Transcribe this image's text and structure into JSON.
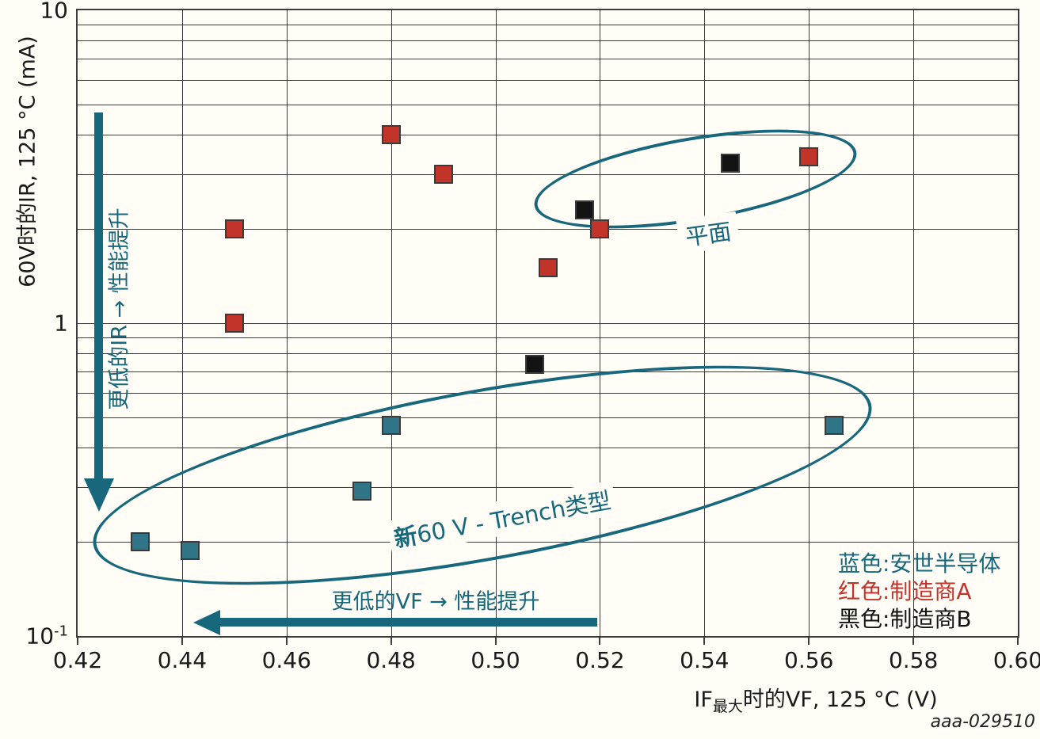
{
  "watermark": "aaa-029510",
  "legend": {
    "items": [
      {
        "label": "蓝色:安世半导体",
        "color": "#17687c"
      },
      {
        "label": "红色:制造商A",
        "color": "#c23329"
      },
      {
        "label": "黑色:制造商B",
        "color": "#131313"
      }
    ]
  },
  "chart_data": {
    "type": "scatter",
    "grid": true,
    "x_axis": {
      "title_main": "IF",
      "title_sub": "最大",
      "title_rest": "时的VF, 125 °C (V)",
      "min": 0.42,
      "max": 0.6,
      "ticks": [
        {
          "label": "0.42",
          "value": 0.42
        },
        {
          "label": "0.44",
          "value": 0.44
        },
        {
          "label": "0.46",
          "value": 0.46
        },
        {
          "label": "0.48",
          "value": 0.48
        },
        {
          "label": "0.50",
          "value": 0.5
        },
        {
          "label": "0.52",
          "value": 0.52
        },
        {
          "label": "0.54",
          "value": 0.54
        },
        {
          "label": "0.56",
          "value": 0.56
        },
        {
          "label": "0.58",
          "value": 0.58
        },
        {
          "label": "0.60",
          "value": 0.6
        }
      ]
    },
    "y_axis": {
      "title": "60V时的IR, 125 °C (mA)",
      "scale": "log",
      "min": 0.1,
      "max": 10,
      "ticks": [
        {
          "base": "10",
          "exp": "",
          "value": 10
        },
        {
          "base": "1",
          "exp": "",
          "value": 1
        },
        {
          "base": "10",
          "exp": "-1",
          "value": 0.1
        }
      ]
    },
    "series": [
      {
        "name": "安世半导体",
        "color": "#2f7487",
        "points": [
          [
            0.432,
            0.2
          ],
          [
            0.4415,
            0.188
          ],
          [
            0.4745,
            0.29
          ],
          [
            0.48,
            0.472
          ],
          [
            0.5648,
            0.472
          ]
        ]
      },
      {
        "name": "制造商A",
        "color": "#c23329",
        "points": [
          [
            0.45,
            1.0
          ],
          [
            0.45,
            2.0
          ],
          [
            0.48,
            4.0
          ],
          [
            0.49,
            3.0
          ],
          [
            0.51,
            1.5
          ],
          [
            0.52,
            2.0
          ],
          [
            0.56,
            3.4
          ]
        ]
      },
      {
        "name": "制造商B",
        "color": "#131313",
        "points": [
          [
            0.5075,
            0.74
          ],
          [
            0.517,
            2.3
          ],
          [
            0.545,
            3.25
          ]
        ]
      }
    ],
    "annotations": {
      "planar_group_label": "平面",
      "trench_group_label_bold": "新",
      "trench_group_label_rest": "60 V - Trench类型",
      "vertical_arrow_label": "更低的IR → 性能提升",
      "horizontal_arrow_label": "更低的VF → 性能提升"
    }
  }
}
